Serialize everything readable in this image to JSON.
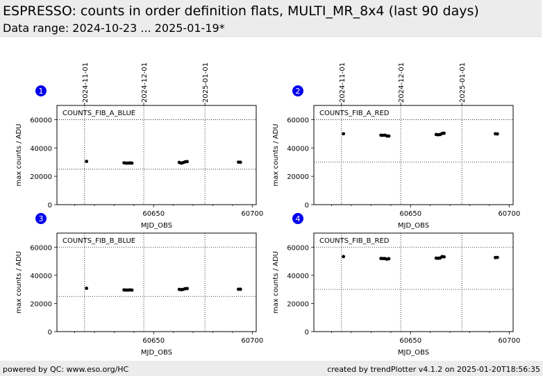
{
  "header": {
    "title": "ESPRESSO: counts in order definition flats, MULTI_MR_8x4 (last 90 days)",
    "subtitle": "Data range: 2024-10-23 ... 2025-01-19*"
  },
  "footer": {
    "left": "powered by QC: www.eso.org/HC",
    "right": "created by trendPlotter v4.1.2 on 2025-01-20T18:56:35"
  },
  "colors": {
    "panel_badge": "#0000ee",
    "points": "#000000",
    "header_bg": "#ececec"
  },
  "chart_data": [
    {
      "type": "scatter",
      "badge": "1",
      "label": "COUNTS_FIB_A_BLUE",
      "xlabel": "MJD_OBS",
      "ylabel": "max counts / ADU",
      "xlim": [
        60601,
        60702
      ],
      "ylim": [
        0,
        70000
      ],
      "x_ticks": [
        60650,
        60700
      ],
      "y_ticks": [
        0,
        20000,
        40000,
        60000
      ],
      "date_ticks": [
        {
          "mjd": 60615,
          "label": "2024-11-01"
        },
        {
          "mjd": 60645,
          "label": "2024-12-01"
        },
        {
          "mjd": 60676,
          "label": "2025-01-01"
        }
      ],
      "ref_lines": [
        60000,
        25000
      ],
      "points": [
        [
          60616,
          30500
        ],
        [
          60635,
          29500
        ],
        [
          60636,
          29300
        ],
        [
          60637,
          29300
        ],
        [
          60638,
          29400
        ],
        [
          60639,
          29300
        ],
        [
          60663,
          29800
        ],
        [
          60664,
          29300
        ],
        [
          60665,
          29700
        ],
        [
          60666,
          30200
        ],
        [
          60667,
          30400
        ],
        [
          60693,
          30000
        ],
        [
          60694,
          29900
        ]
      ]
    },
    {
      "type": "scatter",
      "badge": "2",
      "label": "COUNTS_FIB_A_RED",
      "xlabel": "MJD_OBS",
      "ylabel": "max counts / ADU",
      "xlim": [
        60601,
        60702
      ],
      "ylim": [
        0,
        70000
      ],
      "x_ticks": [
        60650,
        60700
      ],
      "y_ticks": [
        0,
        20000,
        40000,
        60000
      ],
      "date_ticks": [
        {
          "mjd": 60615,
          "label": "2024-11-01"
        },
        {
          "mjd": 60645,
          "label": "2024-12-01"
        },
        {
          "mjd": 60676,
          "label": "2025-01-01"
        }
      ],
      "ref_lines": [
        60000,
        30000
      ],
      "points": [
        [
          60616,
          50000
        ],
        [
          60635,
          49000
        ],
        [
          60636,
          48900
        ],
        [
          60637,
          49000
        ],
        [
          60638,
          48500
        ],
        [
          60639,
          48400
        ],
        [
          60663,
          49500
        ],
        [
          60664,
          49300
        ],
        [
          60665,
          49500
        ],
        [
          60666,
          50200
        ],
        [
          60667,
          50400
        ],
        [
          60693,
          50000
        ],
        [
          60694,
          49900
        ]
      ]
    },
    {
      "type": "scatter",
      "badge": "3",
      "label": "COUNTS_FIB_B_BLUE",
      "xlabel": "MJD_OBS",
      "ylabel": "max counts / ADU",
      "xlim": [
        60601,
        60702
      ],
      "ylim": [
        0,
        70000
      ],
      "x_ticks": [
        60650,
        60700
      ],
      "y_ticks": [
        0,
        20000,
        40000,
        60000
      ],
      "date_ticks": [
        {
          "mjd": 60615,
          "label": "2024-11-01"
        },
        {
          "mjd": 60645,
          "label": "2024-12-01"
        },
        {
          "mjd": 60676,
          "label": "2025-01-01"
        }
      ],
      "ref_lines": [
        60000,
        25000
      ],
      "points": [
        [
          60616,
          30800
        ],
        [
          60635,
          29600
        ],
        [
          60636,
          29500
        ],
        [
          60637,
          29500
        ],
        [
          60638,
          29600
        ],
        [
          60639,
          29500
        ],
        [
          60663,
          30000
        ],
        [
          60664,
          29800
        ],
        [
          60665,
          30000
        ],
        [
          60666,
          30500
        ],
        [
          60667,
          30600
        ],
        [
          60693,
          30100
        ],
        [
          60694,
          30100
        ]
      ]
    },
    {
      "type": "scatter",
      "badge": "4",
      "label": "COUNTS_FIB_B_RED",
      "xlabel": "MJD_OBS",
      "ylabel": "max counts / ADU",
      "xlim": [
        60601,
        60702
      ],
      "ylim": [
        0,
        70000
      ],
      "x_ticks": [
        60650,
        60700
      ],
      "y_ticks": [
        0,
        20000,
        40000,
        60000
      ],
      "date_ticks": [
        {
          "mjd": 60615,
          "label": "2024-11-01"
        },
        {
          "mjd": 60645,
          "label": "2024-12-01"
        },
        {
          "mjd": 60676,
          "label": "2025-01-01"
        }
      ],
      "ref_lines": [
        60000,
        30000
      ],
      "points": [
        [
          60616,
          53300
        ],
        [
          60635,
          52000
        ],
        [
          60636,
          51900
        ],
        [
          60637,
          51900
        ],
        [
          60638,
          51500
        ],
        [
          60639,
          51800
        ],
        [
          60663,
          52200
        ],
        [
          60664,
          52100
        ],
        [
          60665,
          52300
        ],
        [
          60666,
          53300
        ],
        [
          60667,
          53100
        ],
        [
          60693,
          52600
        ],
        [
          60694,
          52700
        ]
      ]
    }
  ]
}
